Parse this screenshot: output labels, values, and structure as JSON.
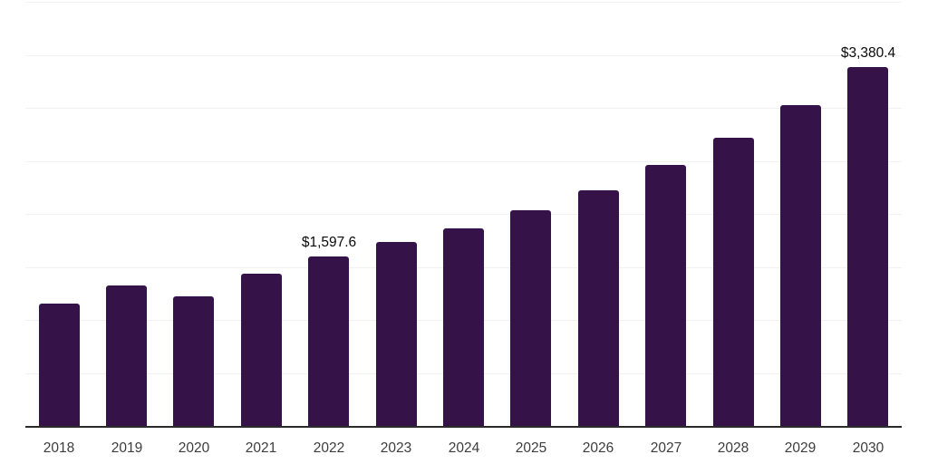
{
  "chart_data": {
    "type": "bar",
    "title": "",
    "xlabel": "",
    "ylabel": "",
    "categories": [
      "2018",
      "2019",
      "2020",
      "2021",
      "2022",
      "2023",
      "2024",
      "2025",
      "2026",
      "2027",
      "2028",
      "2029",
      "2030"
    ],
    "values": [
      1155,
      1325,
      1220,
      1435,
      1597.6,
      1735,
      1860,
      2035,
      2220,
      2460,
      2715,
      3025,
      3380.4
    ],
    "data_labels": {
      "2022": "$1,597.6",
      "2030": "$3,380.4"
    },
    "ylim": [
      0,
      4000
    ],
    "ytick_step": 500,
    "grid": "horizontal-only",
    "legend": "none",
    "y_axis_tick_labels_visible": false,
    "colors": {
      "bar": "#351349",
      "gridline": "#f1f1f1",
      "axis": "#2b2b2b",
      "tick_label": "#3d3d3d",
      "data_label": "#0a0a0a",
      "background": "#ffffff"
    }
  }
}
